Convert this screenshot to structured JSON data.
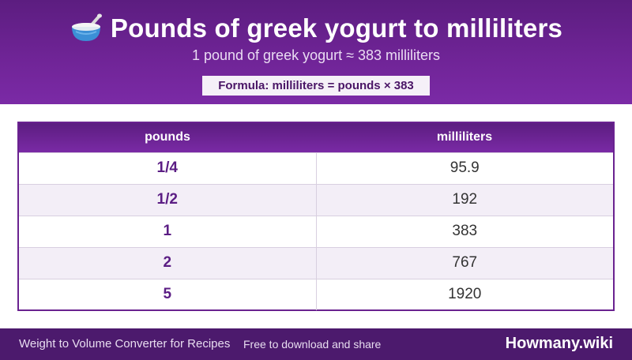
{
  "header": {
    "title": "Pounds of greek yogurt to milliliters",
    "title_icon": "bowl-icon",
    "subtitle": "1 pound of greek yogurt ≈ 383 milliliters",
    "formula": "Formula: milliliters = pounds × 383"
  },
  "table": {
    "columns": [
      "pounds",
      "milliliters"
    ],
    "rows": [
      {
        "pounds": "1/4",
        "milliliters": "95.9"
      },
      {
        "pounds": "1/2",
        "milliliters": "192"
      },
      {
        "pounds": "1",
        "milliliters": "383"
      },
      {
        "pounds": "2",
        "milliliters": "767"
      },
      {
        "pounds": "5",
        "milliliters": "1920"
      }
    ]
  },
  "footer": {
    "left": "Weight to Volume Converter for Recipes",
    "middle": "Free to download and share",
    "brand": "Howmany.wiki"
  },
  "colors": {
    "header_purple": "#6f2496",
    "footer_purple": "#4c1a6d",
    "accent_text": "#5b1d84",
    "alt_row": "#f3eef7"
  }
}
